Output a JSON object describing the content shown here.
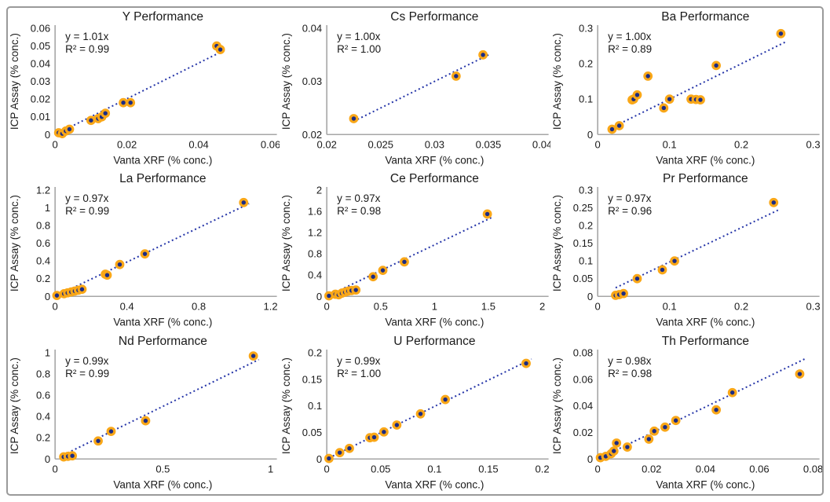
{
  "figure": {
    "shared_x_label": "Vanta XRF (% conc.)",
    "shared_y_label": "ICP Assay (% conc.)"
  },
  "colors": {
    "marker_fill": "#1c2c84",
    "marker_ring": "#f9a718",
    "trend_line": "#2535a8",
    "axis_line": "#a6a6a6",
    "text": "#1a1a1a",
    "frame_border": "#9a9a9a",
    "background": "#ffffff"
  },
  "chart_data": [
    {
      "type": "scatter",
      "element": "Y",
      "title": "Y Performance",
      "equation": "y = 1.01x",
      "r_squared": "R² = 0.99",
      "slope": 1.01,
      "xlabel": "Vanta XRF (% conc.)",
      "ylabel": "ICP Assay (% conc.)",
      "xlim": [
        0,
        0.06
      ],
      "ylim": [
        0,
        0.06
      ],
      "xticks": [
        0,
        0.02,
        0.04,
        0.06
      ],
      "yticks": [
        0,
        0.01,
        0.02,
        0.03,
        0.04,
        0.05,
        0.06
      ],
      "points": [
        [
          0.001,
          0.001
        ],
        [
          0.002,
          0.0005
        ],
        [
          0.003,
          0.002
        ],
        [
          0.004,
          0.003
        ],
        [
          0.01,
          0.008
        ],
        [
          0.012,
          0.009
        ],
        [
          0.013,
          0.01
        ],
        [
          0.014,
          0.012
        ],
        [
          0.019,
          0.018
        ],
        [
          0.021,
          0.018
        ],
        [
          0.045,
          0.05
        ],
        [
          0.046,
          0.048
        ]
      ]
    },
    {
      "type": "scatter",
      "element": "Cs",
      "title": "Cs Performance",
      "equation": "y = 1.00x",
      "r_squared": "R² = 1.00",
      "slope": 1.0,
      "xlabel": "Vanta XRF (% conc.)",
      "ylabel": "ICP Assay (% conc.)",
      "xlim": [
        0.02,
        0.04
      ],
      "ylim": [
        0.02,
        0.04
      ],
      "xticks": [
        0.02,
        0.025,
        0.03,
        0.035,
        0.04
      ],
      "yticks": [
        0.02,
        0.03,
        0.04
      ],
      "points": [
        [
          0.0225,
          0.023
        ],
        [
          0.032,
          0.031
        ],
        [
          0.0345,
          0.035
        ]
      ]
    },
    {
      "type": "scatter",
      "element": "Ba",
      "title": "Ba Performance",
      "equation": "y = 1.00x",
      "r_squared": "R² = 0.89",
      "slope": 1.0,
      "xlabel": "Vanta XRF (% conc.)",
      "ylabel": "ICP Assay (% conc.)",
      "xlim": [
        0,
        0.3
      ],
      "ylim": [
        0,
        0.3
      ],
      "xticks": [
        0,
        0.1,
        0.2,
        0.3
      ],
      "yticks": [
        0,
        0.1,
        0.2,
        0.3
      ],
      "points": [
        [
          0.02,
          0.015
        ],
        [
          0.03,
          0.025
        ],
        [
          0.048,
          0.098
        ],
        [
          0.05,
          0.1
        ],
        [
          0.055,
          0.112
        ],
        [
          0.07,
          0.165
        ],
        [
          0.092,
          0.075
        ],
        [
          0.1,
          0.1
        ],
        [
          0.13,
          0.1
        ],
        [
          0.137,
          0.099
        ],
        [
          0.143,
          0.098
        ],
        [
          0.165,
          0.195
        ],
        [
          0.255,
          0.285
        ]
      ]
    },
    {
      "type": "scatter",
      "element": "La",
      "title": "La Performance",
      "equation": "y = 0.97x",
      "r_squared": "R² = 0.99",
      "slope": 0.97,
      "xlabel": "Vanta XRF (% conc.)",
      "ylabel": "ICP Assay (% conc.)",
      "xlim": [
        0,
        1.2
      ],
      "ylim": [
        0,
        1.2
      ],
      "xticks": [
        0,
        0.4,
        0.8,
        1.2
      ],
      "yticks": [
        0,
        0.2,
        0.4,
        0.6,
        0.8,
        1,
        1.2
      ],
      "points": [
        [
          0.01,
          0.01
        ],
        [
          0.05,
          0.03
        ],
        [
          0.07,
          0.04
        ],
        [
          0.09,
          0.05
        ],
        [
          0.11,
          0.06
        ],
        [
          0.13,
          0.07
        ],
        [
          0.15,
          0.08
        ],
        [
          0.28,
          0.25
        ],
        [
          0.29,
          0.24
        ],
        [
          0.36,
          0.36
        ],
        [
          0.5,
          0.48
        ],
        [
          1.05,
          1.06
        ]
      ]
    },
    {
      "type": "scatter",
      "element": "Ce",
      "title": "Ce Performance",
      "equation": "y = 0.97x",
      "r_squared": "R² = 0.98",
      "slope": 0.97,
      "xlabel": "Vanta XRF (% conc.)",
      "ylabel": "ICP Assay (% conc.)",
      "xlim": [
        0,
        2
      ],
      "ylim": [
        0,
        2
      ],
      "xticks": [
        0,
        0.5,
        1,
        1.5,
        2
      ],
      "yticks": [
        0,
        0.4,
        0.8,
        1.2,
        1.6,
        2
      ],
      "points": [
        [
          0.02,
          0.01
        ],
        [
          0.08,
          0.04
        ],
        [
          0.11,
          0.03
        ],
        [
          0.14,
          0.06
        ],
        [
          0.17,
          0.08
        ],
        [
          0.2,
          0.1
        ],
        [
          0.23,
          0.11
        ],
        [
          0.27,
          0.12
        ],
        [
          0.43,
          0.37
        ],
        [
          0.52,
          0.49
        ],
        [
          0.72,
          0.65
        ],
        [
          1.49,
          1.55
        ]
      ]
    },
    {
      "type": "scatter",
      "element": "Pr",
      "title": "Pr Performance",
      "equation": "y = 0.97x",
      "r_squared": "R² = 0.96",
      "slope": 0.97,
      "xlabel": "Vanta XRF (% conc.)",
      "ylabel": "ICP Assay (% conc.)",
      "xlim": [
        0,
        0.3
      ],
      "ylim": [
        0,
        0.3
      ],
      "xticks": [
        0,
        0.1,
        0.2,
        0.3
      ],
      "yticks": [
        0,
        0.05,
        0.1,
        0.15,
        0.2,
        0.25,
        0.3
      ],
      "points": [
        [
          0.025,
          0.003
        ],
        [
          0.03,
          0.005
        ],
        [
          0.036,
          0.008
        ],
        [
          0.055,
          0.05
        ],
        [
          0.09,
          0.075
        ],
        [
          0.107,
          0.1
        ],
        [
          0.245,
          0.265
        ]
      ]
    },
    {
      "type": "scatter",
      "element": "Nd",
      "title": "Nd Performance",
      "equation": "y = 0.99x",
      "r_squared": "R² = 0.99",
      "slope": 0.99,
      "xlabel": "Vanta XRF (% conc.)",
      "ylabel": "ICP Assay (% conc.)",
      "xlim": [
        0,
        1
      ],
      "ylim": [
        0,
        1
      ],
      "xticks": [
        0,
        0.5,
        1
      ],
      "yticks": [
        0,
        0.2,
        0.4,
        0.6,
        0.8,
        1
      ],
      "points": [
        [
          0.04,
          0.02
        ],
        [
          0.06,
          0.025
        ],
        [
          0.08,
          0.03
        ],
        [
          0.2,
          0.17
        ],
        [
          0.26,
          0.26
        ],
        [
          0.42,
          0.36
        ],
        [
          0.92,
          0.97
        ]
      ]
    },
    {
      "type": "scatter",
      "element": "U",
      "title": "U Performance",
      "equation": "y = 0.99x",
      "r_squared": "R² = 1.00",
      "slope": 0.99,
      "xlabel": "Vanta XRF (% conc.)",
      "ylabel": "ICP Assay (% conc.)",
      "xlim": [
        0,
        0.2
      ],
      "ylim": [
        0,
        0.2
      ],
      "xticks": [
        0,
        0.05,
        0.1,
        0.15,
        0.2
      ],
      "yticks": [
        0,
        0.05,
        0.1,
        0.15,
        0.2
      ],
      "points": [
        [
          0.002,
          0.001
        ],
        [
          0.012,
          0.012
        ],
        [
          0.021,
          0.02
        ],
        [
          0.04,
          0.04
        ],
        [
          0.044,
          0.041
        ],
        [
          0.053,
          0.051
        ],
        [
          0.065,
          0.064
        ],
        [
          0.087,
          0.085
        ],
        [
          0.11,
          0.112
        ],
        [
          0.185,
          0.18
        ]
      ]
    },
    {
      "type": "scatter",
      "element": "Th",
      "title": "Th Performance",
      "equation": "y = 0.98x",
      "r_squared": "R² = 0.98",
      "slope": 0.98,
      "xlabel": "Vanta XRF (% conc.)",
      "ylabel": "ICP Assay (% conc.)",
      "xlim": [
        0,
        0.08
      ],
      "ylim": [
        0,
        0.08
      ],
      "xticks": [
        0,
        0.02,
        0.04,
        0.06,
        0.08
      ],
      "yticks": [
        0,
        0.02,
        0.04,
        0.06,
        0.08
      ],
      "points": [
        [
          0.001,
          0.001
        ],
        [
          0.003,
          0.002
        ],
        [
          0.005,
          0.004
        ],
        [
          0.006,
          0.006
        ],
        [
          0.007,
          0.012
        ],
        [
          0.011,
          0.009
        ],
        [
          0.019,
          0.015
        ],
        [
          0.021,
          0.021
        ],
        [
          0.025,
          0.024
        ],
        [
          0.029,
          0.029
        ],
        [
          0.044,
          0.037
        ],
        [
          0.05,
          0.05
        ],
        [
          0.075,
          0.064
        ]
      ]
    }
  ]
}
